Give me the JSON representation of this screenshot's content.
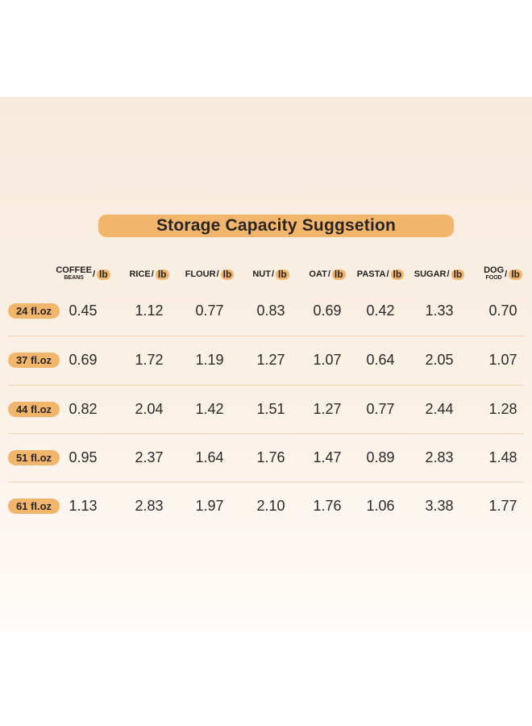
{
  "title": "Storage Capacity Suggsetion",
  "unit": "lb",
  "columns": [
    {
      "name": "COFFEE",
      "sub": "BEANS"
    },
    {
      "name": "RICE",
      "sub": ""
    },
    {
      "name": "FLOUR",
      "sub": ""
    },
    {
      "name": "NUT",
      "sub": ""
    },
    {
      "name": "OAT",
      "sub": ""
    },
    {
      "name": "PASTA",
      "sub": ""
    },
    {
      "name": "SUGAR",
      "sub": ""
    },
    {
      "name": "DOG",
      "sub": "FOOD"
    }
  ],
  "rows": [
    {
      "label": "24 fl.oz",
      "values": [
        "0.45",
        "1.12",
        "0.77",
        "0.83",
        "0.69",
        "0.42",
        "1.33",
        "0.70"
      ]
    },
    {
      "label": "37 fl.oz",
      "values": [
        "0.69",
        "1.72",
        "1.19",
        "1.27",
        "1.07",
        "0.64",
        "2.05",
        "1.07"
      ]
    },
    {
      "label": "44 fl.oz",
      "values": [
        "0.82",
        "2.04",
        "1.42",
        "1.51",
        "1.27",
        "0.77",
        "2.44",
        "1.28"
      ]
    },
    {
      "label": "51 fl.oz",
      "values": [
        "0.95",
        "2.37",
        "1.64",
        "1.76",
        "1.47",
        "0.89",
        "2.83",
        "1.48"
      ]
    },
    {
      "label": "61 fl.oz",
      "values": [
        "1.13",
        "2.83",
        "1.97",
        "2.10",
        "1.76",
        "1.06",
        "3.38",
        "1.77"
      ]
    }
  ],
  "colors": {
    "accent": "#f2b56c",
    "divider": "#f3d2b0",
    "background": "#f8ebde"
  }
}
